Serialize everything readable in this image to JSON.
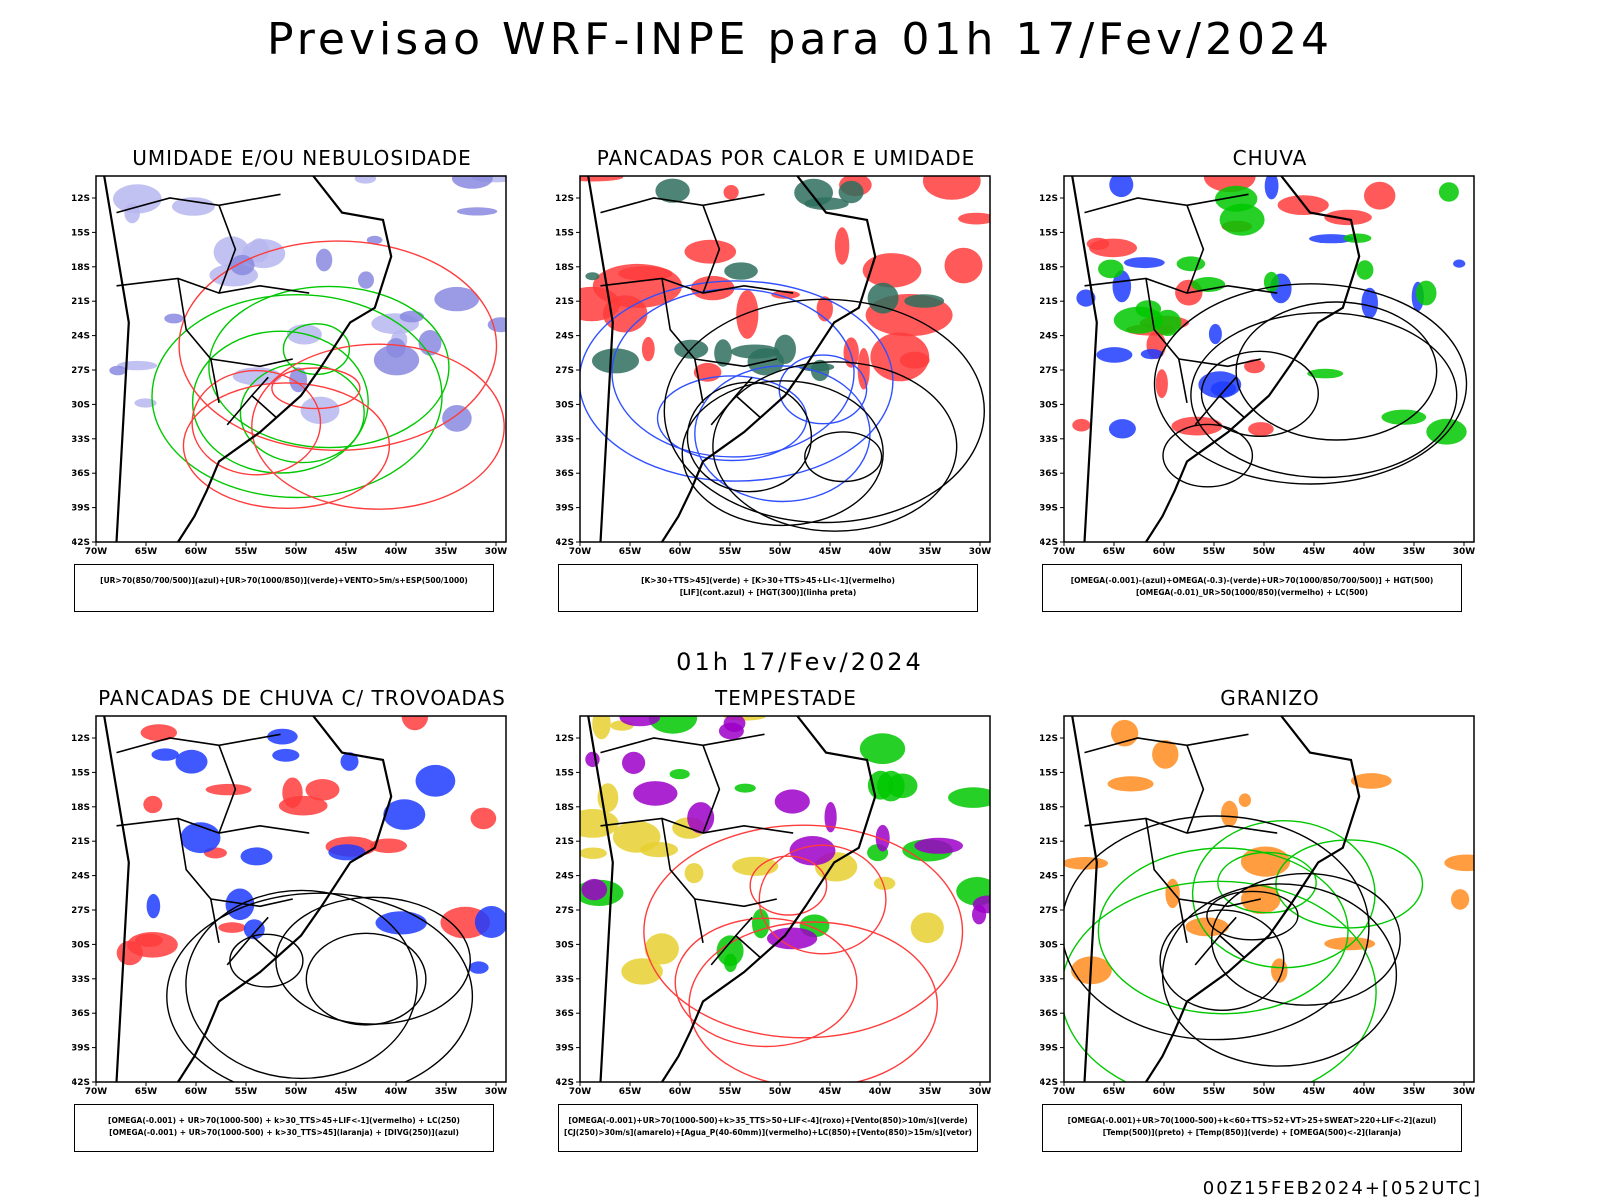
{
  "header": {
    "title": "Previsao WRF-INPE  para 01h 17/Fev/2024"
  },
  "subtitle": "01h 17/Fev/2024",
  "footer": "00Z15FEB2024+[052UTC]",
  "axes": {
    "lat_ticks": [
      "12S",
      "15S",
      "18S",
      "21S",
      "24S",
      "27S",
      "30S",
      "33S",
      "36S",
      "39S",
      "42S"
    ],
    "lon_ticks": [
      "70W",
      "65W",
      "60W",
      "55W",
      "50W",
      "45W",
      "40W",
      "35W",
      "30W"
    ]
  },
  "panels": [
    {
      "title": "UMIDADE E/OU NEBULOSIDADE",
      "legend_lines": [
        "[UR>70(850/700/500)](azul)+[UR>70(1000/850)](verde)+VENTO>5m/s+ESP(500/1000)"
      ],
      "fills": [
        "#b7b7f0",
        "#8a8ae0"
      ],
      "lines": [
        "#00c800",
        "#ff3c3c"
      ]
    },
    {
      "title": "PANCADAS POR CALOR E UMIDADE",
      "legend_lines": [
        "[K>30+TTS>45](verde) + [K>30+TTS>45+LI<-1](vermelho)",
        "[LIF](cont.azul) + [HGT(300)](linha preta)"
      ],
      "fills": [
        "#ff3c3c",
        "#2e6e5e"
      ],
      "lines": [
        "#3050ff",
        "#000000"
      ]
    },
    {
      "title": "CHUVA",
      "legend_lines": [
        "[OMEGA(-0.001)-(azul)+OMEGA(-0.3)-(verde)+UR>70(1000/850/700/500)] + HGT(500)",
        "[OMEGA(-0.01)_UR>50(1000/850)(vermelho) + LC(500)"
      ],
      "fills": [
        "#ff3c3c",
        "#1e3cff",
        "#00c800"
      ],
      "lines": [
        "#000000"
      ]
    },
    {
      "title": "PANCADAS DE CHUVA C/ TROVOADAS",
      "legend_lines": [
        "[OMEGA(-0.001) + UR>70(1000-500) + k>30_TTS>45+LIF<-1](vermelho) + LC(250)",
        "[OMEGA(-0.001) + UR>70(1000-500) + k>30_TTS>45](laranja) + [DIVG(250)](azul)"
      ],
      "fills": [
        "#ff3c3c",
        "#1e3cff"
      ],
      "lines": [
        "#000000"
      ]
    },
    {
      "title": "TEMPESTADE",
      "legend_lines": [
        "[OMEGA(-0.001)+UR>70(1000-500)+k>35_TTS>50+LIF<-4](roxo)+[Vento(850)>10m/s](verde)",
        "[CJ(250)>30m/s](amarelo)+[Agua_P(40-60mm)](vermelho)+LC(850)+[Vento(850)>15m/s](vetor)"
      ],
      "fills": [
        "#e8d030",
        "#00c800",
        "#9c00c8"
      ],
      "lines": [
        "#ff3c3c"
      ]
    },
    {
      "title": "GRANIZO",
      "legend_lines": [
        "[OMEGA(-0.001)+UR>70(1000-500)+k<60+TTS>52+VT>25+SWEAT>220+LIF<-2](azul)",
        "[Temp(500)](preto) + [Temp(850)](verde) + [OMEGA(500)<-2](laranja)"
      ],
      "fills": [
        "#ff8c1e"
      ],
      "lines": [
        "#00c800",
        "#000000"
      ]
    }
  ]
}
